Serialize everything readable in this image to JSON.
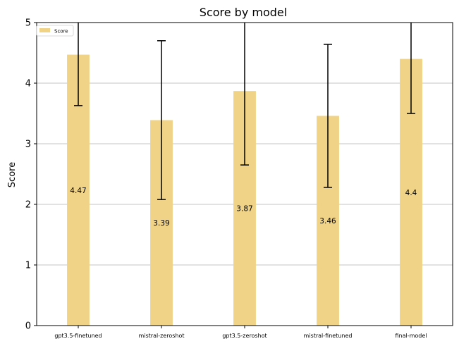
{
  "chart_data": {
    "type": "bar",
    "title": "Score by model",
    "xlabel": "",
    "ylabel": "Score",
    "categories": [
      "gpt3.5-finetuned",
      "mistral-zeroshot",
      "gpt3.5-zeroshot",
      "mistral-finetuned",
      "final-model"
    ],
    "series": [
      {
        "name": "Score",
        "values": [
          4.47,
          3.39,
          3.87,
          3.46,
          4.4
        ],
        "error_low": [
          3.63,
          2.08,
          2.65,
          2.28,
          3.5
        ],
        "error_high": [
          5.31,
          4.7,
          5.09,
          4.64,
          5.3
        ],
        "data_labels": [
          "4.47",
          "3.39",
          "3.87",
          "3.46",
          "4.4"
        ]
      }
    ],
    "ylim": [
      0,
      5
    ],
    "yticks": [
      "0",
      "1",
      "2",
      "3",
      "4",
      "5"
    ],
    "grid": "horizontal",
    "legend_position": "top-left",
    "colors": {
      "bar": "#f0d386",
      "error_bar": "#000000",
      "grid": "#b0b0b0",
      "axis": "#000000"
    }
  }
}
